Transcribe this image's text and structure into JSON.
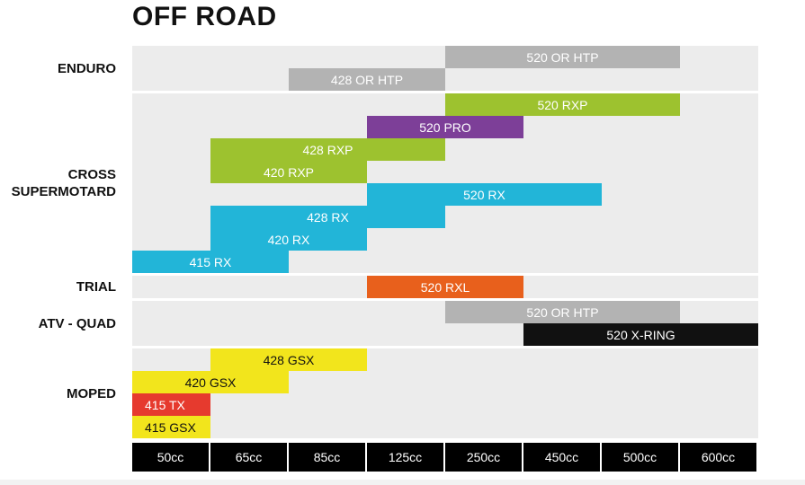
{
  "chart_data": {
    "type": "table",
    "title": "OFF ROAD",
    "colors": {
      "band": "#ececec",
      "gray": "#b3b3b3",
      "green": "#9dc22f",
      "purple": "#7d3f98",
      "cyan": "#22b5d8",
      "orange": "#e8601c",
      "black": "#111111",
      "yellow": "#f2e51c",
      "red": "#e63a2e"
    },
    "categories": [
      "50cc",
      "65cc",
      "85cc",
      "125cc",
      "250cc",
      "450cc",
      "500cc",
      "600cc"
    ],
    "groups": [
      {
        "label": "ENDURO",
        "rows": 2,
        "bars": [
          {
            "label": "520 OR HTP",
            "start": 4,
            "end": 7,
            "row": 0,
            "color": "gray",
            "text_color": "#ffffff",
            "align": "center"
          },
          {
            "label": "428 OR HTP",
            "start": 2,
            "end": 4,
            "row": 1,
            "color": "gray",
            "text_color": "#ffffff",
            "align": "center"
          }
        ]
      },
      {
        "label": "CROSS\nSUPERMOTARD",
        "rows": 8,
        "bars": [
          {
            "label": "520 RXP",
            "start": 4,
            "end": 7,
            "row": 0,
            "color": "green",
            "text_color": "#ffffff",
            "align": "center"
          },
          {
            "label": "520 PRO",
            "start": 3,
            "end": 5,
            "row": 1,
            "color": "purple",
            "text_color": "#ffffff",
            "align": "center"
          },
          {
            "label": "428 RXP",
            "start": 1,
            "end": 4,
            "row": 2,
            "color": "green",
            "text_color": "#ffffff",
            "align": "center"
          },
          {
            "label": "420 RXP",
            "start": 1,
            "end": 3,
            "row": 3,
            "color": "green",
            "text_color": "#ffffff",
            "align": "center"
          },
          {
            "label": "520 RX",
            "start": 3,
            "end": 6,
            "row": 4,
            "color": "cyan",
            "text_color": "#ffffff",
            "align": "center"
          },
          {
            "label": "428 RX",
            "start": 1,
            "end": 4,
            "row": 5,
            "color": "cyan",
            "text_color": "#ffffff",
            "align": "center"
          },
          {
            "label": "420 RX",
            "start": 1,
            "end": 3,
            "row": 6,
            "color": "cyan",
            "text_color": "#ffffff",
            "align": "center"
          },
          {
            "label": "415 RX",
            "start": 0,
            "end": 2,
            "row": 7,
            "color": "cyan",
            "text_color": "#ffffff",
            "align": "center"
          }
        ]
      },
      {
        "label": "TRIAL",
        "rows": 1,
        "bars": [
          {
            "label": "520 RXL",
            "start": 3,
            "end": 5,
            "row": 0,
            "color": "orange",
            "text_color": "#ffffff",
            "align": "center"
          }
        ]
      },
      {
        "label": "ATV - QUAD",
        "rows": 2,
        "bars": [
          {
            "label": "520 OR HTP",
            "start": 4,
            "end": 7,
            "row": 0,
            "color": "gray",
            "text_color": "#ffffff",
            "align": "center"
          },
          {
            "label": "520 X-RING",
            "start": 5,
            "end": 8,
            "row": 1,
            "color": "black",
            "text_color": "#ffffff",
            "align": "center"
          }
        ]
      },
      {
        "label": "MOPED",
        "rows": 4,
        "bars": [
          {
            "label": "428 GSX",
            "start": 1,
            "end": 3,
            "row": 0,
            "color": "yellow",
            "text_color": "#111111",
            "align": "center"
          },
          {
            "label": "420 GSX",
            "start": 0,
            "end": 2,
            "row": 1,
            "color": "yellow",
            "text_color": "#111111",
            "align": "center"
          },
          {
            "label": "415 TX",
            "start": 0,
            "end": 1,
            "row": 2,
            "color": "red",
            "text_color": "#ffffff",
            "align": "start"
          },
          {
            "label": "415 GSX",
            "start": 0,
            "end": 1,
            "row": 3,
            "color": "yellow",
            "text_color": "#111111",
            "align": "start"
          }
        ]
      }
    ]
  }
}
